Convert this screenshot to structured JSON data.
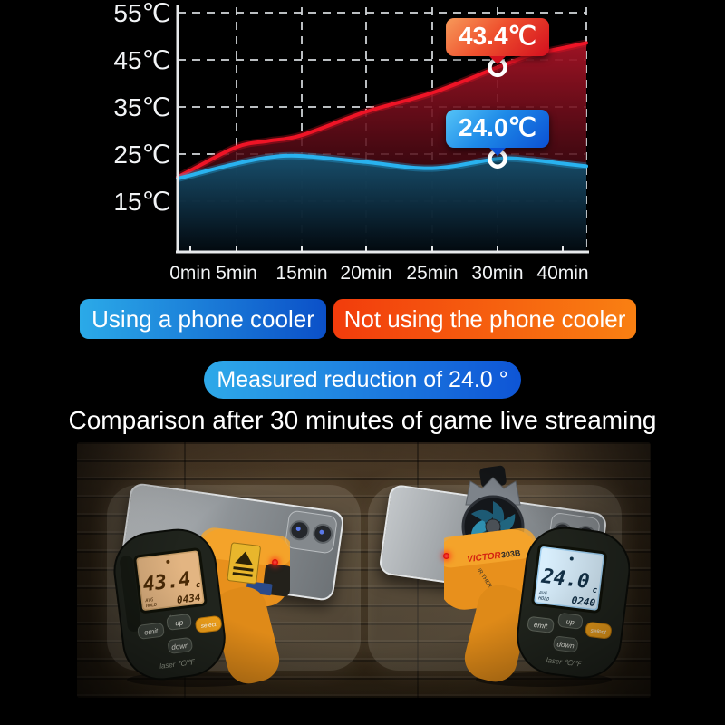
{
  "chart": {
    "y_tick_labels": [
      "55℃",
      "45℃",
      "35℃",
      "25℃",
      "15℃"
    ],
    "x_tick_labels": [
      "0min",
      "5min",
      "15min",
      "20min",
      "25min",
      "30min",
      "40min"
    ]
  },
  "chart_data": {
    "type": "area",
    "title": "",
    "x_unit": "minutes",
    "x": [
      0,
      5,
      10,
      15,
      20,
      25,
      30,
      35,
      40
    ],
    "x_tick_minutes": [
      0,
      5,
      15,
      20,
      25,
      30,
      40
    ],
    "x_tick_labels": [
      "0min",
      "5min",
      "15min",
      "20min",
      "25min",
      "30min",
      "40min"
    ],
    "y_ticks": [
      55,
      45,
      35,
      25,
      15
    ],
    "ylim": [
      5,
      57
    ],
    "grid": true,
    "series": [
      {
        "name": "Not using the phone cooler",
        "color": "#ee1426",
        "values": [
          21.5,
          26.5,
          27.8,
          29.0,
          34.0,
          38.0,
          43.4,
          46.0,
          47.5
        ]
      },
      {
        "name": "Using a phone cooler",
        "color": "#29b2ef",
        "values": [
          20.5,
          23.0,
          24.3,
          24.6,
          23.3,
          22.0,
          24.0,
          23.8,
          23.0
        ]
      }
    ],
    "annotations": [
      {
        "series": "Not using the phone cooler",
        "x": 30,
        "label": "43.4℃"
      },
      {
        "series": "Using a phone cooler",
        "x": 30,
        "label": "24.0℃"
      }
    ]
  },
  "legend": {
    "using": "Using a phone cooler",
    "not_using": "Not using the phone cooler"
  },
  "summary_pill": "Measured reduction of 24.0 °",
  "headline": "Comparison after 30 minutes of game live streaming",
  "colors": {
    "red_line": "#ee1426",
    "blue_line": "#29b2ef",
    "banner_blue": "#0b50c8",
    "banner_orange": "#f98012",
    "pill_blue": "#0e55d6"
  },
  "photo": {
    "left_device": {
      "lcd_value": "43.4",
      "lcd_unit": "c",
      "lcd_avg": "AVG",
      "lcd_hold": "HOLD",
      "lcd_sub": "0434",
      "btn_emit": "emit",
      "btn_up": "up",
      "btn_down": "down",
      "btn_select": "select",
      "laser_label": "laser ℃/℉"
    },
    "right_device": {
      "brand": "VICTOR",
      "model": "303B",
      "device_label": "IR THERMOMETER",
      "lcd_value": "24.0",
      "lcd_unit": "c",
      "lcd_avg": "AVG",
      "lcd_hold": "HOLD",
      "lcd_sub": "0240",
      "btn_emit": "emit",
      "btn_up": "up",
      "btn_down": "down",
      "btn_select": "select",
      "laser_label": "laser ℃/℉"
    }
  }
}
